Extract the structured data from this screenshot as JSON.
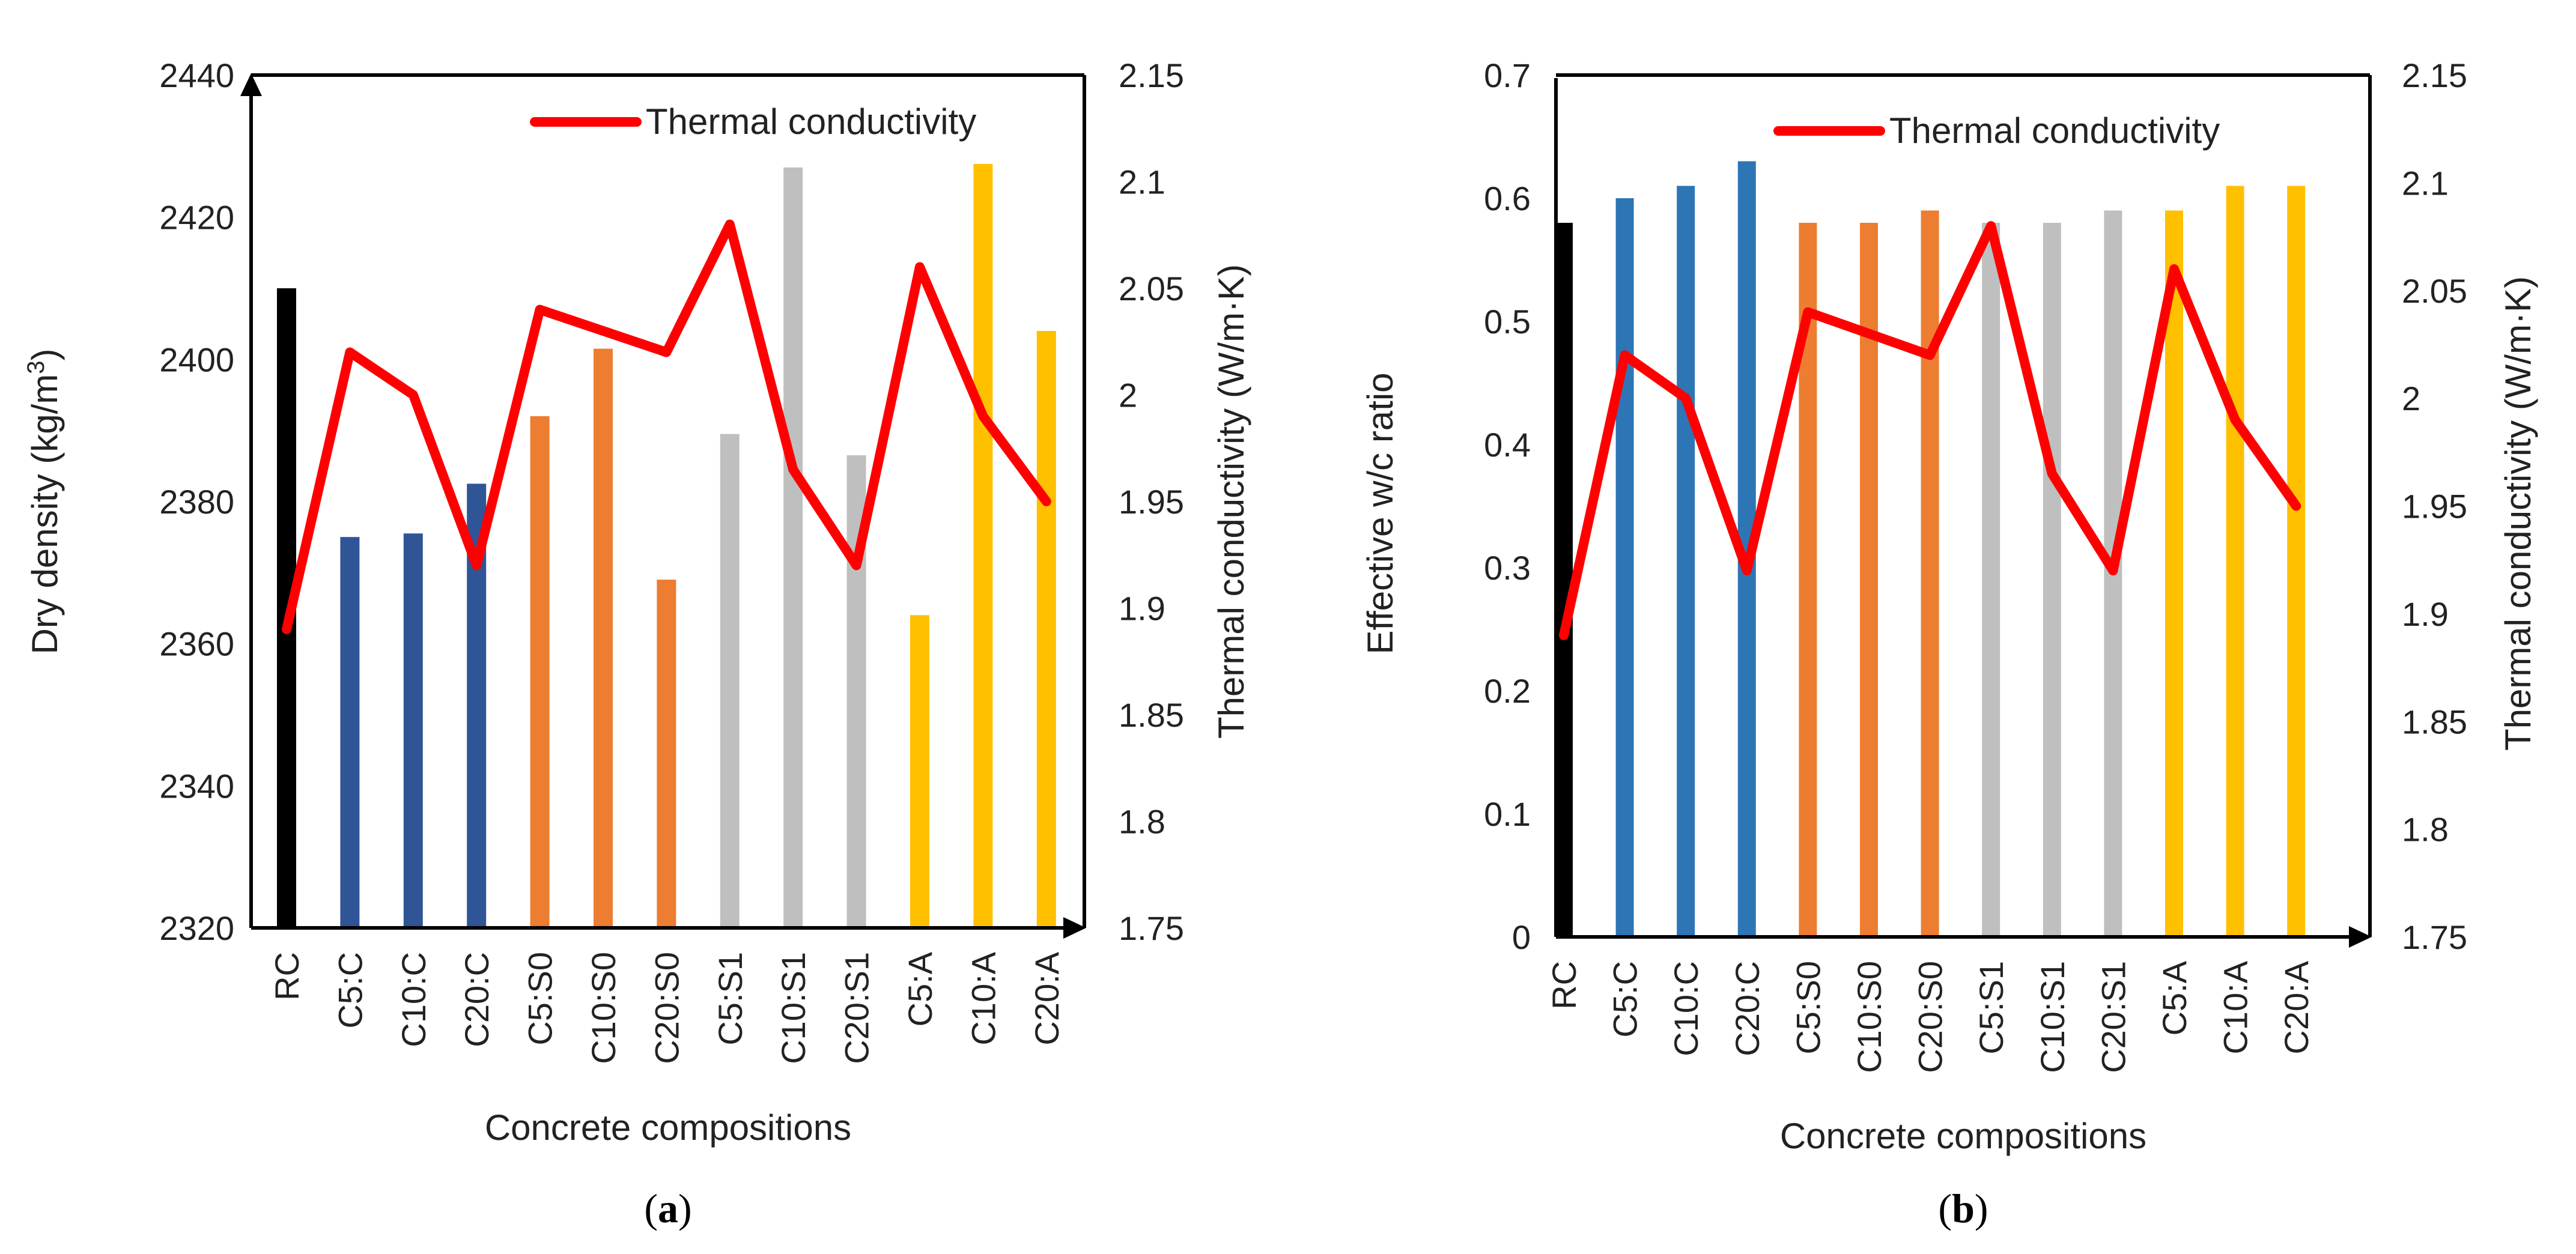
{
  "figure_labels": {
    "a_open": "(",
    "a_letter": "a",
    "a_close": ")",
    "b_open": "(",
    "b_letter": "b",
    "b_close": ")"
  },
  "colors": {
    "rc": "#000000",
    "c": "#2f5597",
    "c_b": "#2e75b6",
    "s0": "#ed7d31",
    "s1": "#bfbfbf",
    "a": "#ffc000",
    "line": "#ff0000"
  },
  "chart_data": [
    {
      "type": "bar",
      "title": "",
      "xlabel": "Concrete compositions",
      "ylabel": "Dry density (kg/m³)",
      "ylabel_prefix": "Dry density (kg/m",
      "ylabel_sup": "3",
      "ylabel_suffix": ")",
      "y2label": "Thermal conductivity (W/m·K)",
      "ylim": [
        2320,
        2440
      ],
      "y_ticks": [
        2320,
        2340,
        2360,
        2380,
        2400,
        2420,
        2440
      ],
      "y_tick_labels": [
        "2320",
        "2340",
        "2360",
        "2380",
        "2400",
        "2420",
        "2440"
      ],
      "y2lim": [
        1.75,
        2.15
      ],
      "y2_ticks": [
        1.75,
        1.8,
        1.85,
        1.9,
        1.95,
        2.0,
        2.05,
        2.1,
        2.15
      ],
      "y2_tick_labels": [
        "1.75",
        "1.8",
        "1.85",
        "1.9",
        "1.95",
        "2",
        "2.05",
        "2.1",
        "2.15"
      ],
      "categories": [
        "RC",
        "C5:C",
        "C10:C",
        "C20:C",
        "C5:S0",
        "C10:S0",
        "C20:S0",
        "C5:S1",
        "C10:S1",
        "C20:S1",
        "C5:A",
        "C10:A",
        "C20:A"
      ],
      "bar_groups": [
        "rc",
        "c",
        "c",
        "c",
        "s0",
        "s0",
        "s0",
        "s1",
        "s1",
        "s1",
        "a",
        "a",
        "a"
      ],
      "series": [
        {
          "name": "Dry density",
          "axis": "left",
          "kind": "bar",
          "values": [
            2410,
            2375,
            2375.5,
            2382.5,
            2392,
            2401.5,
            2369,
            2389.5,
            2427,
            2386.5,
            2364,
            2427.5,
            2404
          ]
        },
        {
          "name": "Thermal conductivity",
          "axis": "right",
          "kind": "line",
          "values": [
            1.89,
            2.02,
            2.0,
            1.92,
            2.04,
            2.03,
            2.02,
            2.08,
            1.965,
            1.92,
            2.06,
            1.99,
            1.95
          ]
        }
      ],
      "legend": {
        "label": "Thermal conductivity",
        "position": "top-right"
      },
      "grid": false
    },
    {
      "type": "bar",
      "title": "",
      "xlabel": "Concrete compositions",
      "ylabel": "Effective w/c ratio",
      "y2label": "Thermal conductivity (W/m·K)",
      "ylim": [
        0,
        0.7
      ],
      "y_ticks": [
        0,
        0.1,
        0.2,
        0.3,
        0.4,
        0.5,
        0.6,
        0.7
      ],
      "y_tick_labels": [
        "0",
        "0.1",
        "0.2",
        "0.3",
        "0.4",
        "0.5",
        "0.6",
        "0.7"
      ],
      "y2lim": [
        1.75,
        2.15
      ],
      "y2_ticks": [
        1.75,
        1.8,
        1.85,
        1.9,
        1.95,
        2.0,
        2.05,
        2.1,
        2.15
      ],
      "y2_tick_labels": [
        "1.75",
        "1.8",
        "1.85",
        "1.9",
        "1.95",
        "2",
        "2.05",
        "2.1",
        "2.15"
      ],
      "categories": [
        "RC",
        "C5:C",
        "C10:C",
        "C20:C",
        "C5:S0",
        "C10:S0",
        "C20:S0",
        "C5:S1",
        "C10:S1",
        "C20:S1",
        "C5:A",
        "C10:A",
        "C20:A"
      ],
      "bar_groups": [
        "rc",
        "c_b",
        "c_b",
        "c_b",
        "s0",
        "s0",
        "s0",
        "s1",
        "s1",
        "s1",
        "a",
        "a",
        "a"
      ],
      "series": [
        {
          "name": "Effective w/c ratio",
          "axis": "left",
          "kind": "bar",
          "values": [
            0.58,
            0.6,
            0.61,
            0.63,
            0.58,
            0.58,
            0.59,
            0.58,
            0.58,
            0.59,
            0.59,
            0.61,
            0.61
          ]
        },
        {
          "name": "Thermal conductivity",
          "axis": "right",
          "kind": "line",
          "values": [
            1.89,
            2.02,
            2.0,
            1.92,
            2.04,
            2.03,
            2.02,
            2.08,
            1.965,
            1.92,
            2.06,
            1.99,
            1.95
          ]
        }
      ],
      "legend": {
        "label": "Thermal conductivity",
        "position": "top-right"
      },
      "grid": false
    }
  ]
}
